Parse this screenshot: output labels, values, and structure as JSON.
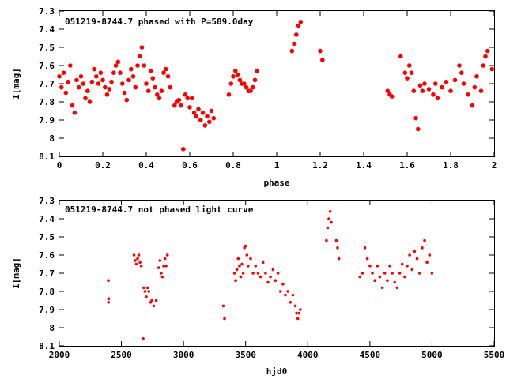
{
  "chart_data": [
    {
      "type": "scatter",
      "title": "051219-8744.7 phased with P=589.0day",
      "xlabel": "phase",
      "ylabel": "I[mag]",
      "xlim": [
        0,
        2
      ],
      "ylim": [
        7.3,
        8.1
      ],
      "y_inverted": true,
      "grid": false,
      "marker_color": "#ff0000",
      "x_ticks": [
        "0",
        "0.2",
        "0.4",
        "0.6",
        "0.8",
        "1",
        "1.2",
        "1.4",
        "1.6",
        "1.8",
        "2"
      ],
      "y_ticks": [
        "7.3",
        "7.4",
        "7.5",
        "7.6",
        "7.7",
        "7.8",
        "7.9",
        "8",
        "8.1"
      ],
      "series": [
        {
          "points": [
            [
              0.0,
              7.66
            ],
            [
              0.01,
              7.72
            ],
            [
              0.02,
              7.64
            ],
            [
              0.03,
              7.75
            ],
            [
              0.04,
              7.69
            ],
            [
              0.05,
              7.6
            ],
            [
              0.06,
              7.82
            ],
            [
              0.07,
              7.86
            ],
            [
              0.08,
              7.68
            ],
            [
              0.09,
              7.72
            ],
            [
              0.1,
              7.66
            ],
            [
              0.11,
              7.7
            ],
            [
              0.12,
              7.78
            ],
            [
              0.13,
              7.74
            ],
            [
              0.14,
              7.8
            ],
            [
              0.15,
              7.69
            ],
            [
              0.16,
              7.62
            ],
            [
              0.17,
              7.66
            ],
            [
              0.18,
              7.7
            ],
            [
              0.19,
              7.64
            ],
            [
              0.2,
              7.68
            ],
            [
              0.21,
              7.72
            ],
            [
              0.22,
              7.76
            ],
            [
              0.23,
              7.73
            ],
            [
              0.24,
              7.69
            ],
            [
              0.25,
              7.64
            ],
            [
              0.26,
              7.6
            ],
            [
              0.27,
              7.58
            ],
            [
              0.28,
              7.64
            ],
            [
              0.29,
              7.7
            ],
            [
              0.3,
              7.75
            ],
            [
              0.31,
              7.79
            ],
            [
              0.32,
              7.68
            ],
            [
              0.33,
              7.62
            ],
            [
              0.34,
              7.66
            ],
            [
              0.35,
              7.72
            ],
            [
              0.36,
              7.6
            ],
            [
              0.37,
              7.55
            ],
            [
              0.38,
              7.5
            ],
            [
              0.39,
              7.6
            ],
            [
              0.4,
              7.7
            ],
            [
              0.41,
              7.74
            ],
            [
              0.42,
              7.63
            ],
            [
              0.43,
              7.67
            ],
            [
              0.44,
              7.72
            ],
            [
              0.45,
              7.76
            ],
            [
              0.46,
              7.78
            ],
            [
              0.47,
              7.74
            ],
            [
              0.48,
              7.64
            ],
            [
              0.49,
              7.62
            ],
            [
              0.5,
              7.66
            ],
            [
              0.51,
              7.72
            ],
            [
              0.53,
              7.82
            ],
            [
              0.54,
              7.8
            ],
            [
              0.55,
              7.79
            ],
            [
              0.56,
              7.82
            ],
            [
              0.57,
              8.06
            ],
            [
              0.58,
              7.76
            ],
            [
              0.59,
              7.78
            ],
            [
              0.6,
              7.83
            ],
            [
              0.61,
              7.78
            ],
            [
              0.62,
              7.86
            ],
            [
              0.63,
              7.88
            ],
            [
              0.64,
              7.84
            ],
            [
              0.65,
              7.9
            ],
            [
              0.66,
              7.86
            ],
            [
              0.67,
              7.93
            ],
            [
              0.68,
              7.88
            ],
            [
              0.69,
              7.91
            ],
            [
              0.7,
              7.85
            ],
            [
              0.71,
              7.89
            ],
            [
              0.78,
              7.76
            ],
            [
              0.79,
              7.7
            ],
            [
              0.8,
              7.66
            ],
            [
              0.81,
              7.63
            ],
            [
              0.82,
              7.65
            ],
            [
              0.83,
              7.68
            ],
            [
              0.84,
              7.7
            ],
            [
              0.85,
              7.7
            ],
            [
              0.86,
              7.72
            ],
            [
              0.87,
              7.74
            ],
            [
              0.88,
              7.74
            ],
            [
              0.89,
              7.72
            ],
            [
              0.9,
              7.68
            ],
            [
              0.91,
              7.63
            ],
            [
              1.07,
              7.52
            ],
            [
              1.08,
              7.48
            ],
            [
              1.09,
              7.43
            ],
            [
              1.1,
              7.38
            ],
            [
              1.11,
              7.36
            ],
            [
              1.2,
              7.52
            ],
            [
              1.21,
              7.57
            ],
            [
              1.51,
              7.74
            ],
            [
              1.52,
              7.76
            ],
            [
              1.53,
              7.77
            ],
            [
              1.57,
              7.55
            ],
            [
              1.59,
              7.64
            ],
            [
              1.6,
              7.67
            ],
            [
              1.61,
              7.6
            ],
            [
              1.62,
              7.64
            ],
            [
              1.63,
              7.74
            ],
            [
              1.64,
              7.89
            ],
            [
              1.65,
              7.95
            ],
            [
              1.66,
              7.71
            ],
            [
              1.67,
              7.74
            ],
            [
              1.68,
              7.7
            ],
            [
              1.7,
              7.73
            ],
            [
              1.72,
              7.76
            ],
            [
              1.73,
              7.7
            ],
            [
              1.74,
              7.78
            ],
            [
              1.76,
              7.72
            ],
            [
              1.78,
              7.69
            ],
            [
              1.8,
              7.74
            ],
            [
              1.82,
              7.68
            ],
            [
              1.84,
              7.6
            ],
            [
              1.85,
              7.64
            ],
            [
              1.86,
              7.7
            ],
            [
              1.88,
              7.76
            ],
            [
              1.9,
              7.82
            ],
            [
              1.91,
              7.72
            ],
            [
              1.92,
              7.66
            ],
            [
              1.94,
              7.74
            ],
            [
              1.95,
              7.6
            ],
            [
              1.96,
              7.55
            ],
            [
              1.97,
              7.52
            ],
            [
              1.99,
              7.62
            ]
          ]
        }
      ]
    },
    {
      "type": "scatter",
      "title": "051219-8744.7 not phased light curve",
      "xlabel": "hjd0",
      "ylabel": "I[mag]",
      "xlim": [
        2000,
        5500
      ],
      "ylim": [
        7.3,
        8.1
      ],
      "y_inverted": true,
      "grid": false,
      "marker_color": "#ff0000",
      "x_ticks": [
        "2000",
        "2500",
        "3000",
        "3500",
        "4000",
        "4500",
        "5000",
        "5500"
      ],
      "y_ticks": [
        "7.3",
        "7.4",
        "7.5",
        "7.6",
        "7.7",
        "7.8",
        "7.9",
        "8",
        "8.1"
      ],
      "series": [
        {
          "points": [
            [
              2395,
              7.74
            ],
            [
              2396,
              7.86
            ],
            [
              2398,
              7.84
            ],
            [
              2602,
              7.6
            ],
            [
              2610,
              7.63
            ],
            [
              2620,
              7.65
            ],
            [
              2630,
              7.62
            ],
            [
              2640,
              7.6
            ],
            [
              2650,
              7.64
            ],
            [
              2660,
              7.66
            ],
            [
              2675,
              8.06
            ],
            [
              2680,
              7.78
            ],
            [
              2690,
              7.8
            ],
            [
              2700,
              7.83
            ],
            [
              2710,
              7.78
            ],
            [
              2720,
              7.8
            ],
            [
              2735,
              7.86
            ],
            [
              2745,
              7.85
            ],
            [
              2760,
              7.88
            ],
            [
              2780,
              7.85
            ],
            [
              2800,
              7.67
            ],
            [
              2810,
              7.63
            ],
            [
              2820,
              7.7
            ],
            [
              2830,
              7.72
            ],
            [
              2840,
              7.66
            ],
            [
              2850,
              7.62
            ],
            [
              2860,
              7.66
            ],
            [
              2870,
              7.6
            ],
            [
              3320,
              7.88
            ],
            [
              3330,
              7.95
            ],
            [
              3410,
              7.7
            ],
            [
              3420,
              7.74
            ],
            [
              3430,
              7.68
            ],
            [
              3440,
              7.62
            ],
            [
              3450,
              7.66
            ],
            [
              3460,
              7.72
            ],
            [
              3470,
              7.65
            ],
            [
              3480,
              7.7
            ],
            [
              3490,
              7.56
            ],
            [
              3500,
              7.55
            ],
            [
              3510,
              7.6
            ],
            [
              3520,
              7.66
            ],
            [
              3540,
              7.62
            ],
            [
              3560,
              7.7
            ],
            [
              3580,
              7.66
            ],
            [
              3600,
              7.7
            ],
            [
              3620,
              7.72
            ],
            [
              3640,
              7.64
            ],
            [
              3660,
              7.7
            ],
            [
              3680,
              7.75
            ],
            [
              3700,
              7.72
            ],
            [
              3720,
              7.68
            ],
            [
              3740,
              7.74
            ],
            [
              3760,
              7.7
            ],
            [
              3780,
              7.8
            ],
            [
              3800,
              7.76
            ],
            [
              3820,
              7.82
            ],
            [
              3840,
              7.8
            ],
            [
              3860,
              7.86
            ],
            [
              3880,
              7.82
            ],
            [
              3900,
              7.88
            ],
            [
              3910,
              7.92
            ],
            [
              3920,
              7.95
            ],
            [
              3930,
              7.92
            ],
            [
              3940,
              7.9
            ],
            [
              4150,
              7.52
            ],
            [
              4160,
              7.45
            ],
            [
              4170,
              7.4
            ],
            [
              4180,
              7.36
            ],
            [
              4190,
              7.42
            ],
            [
              4230,
              7.52
            ],
            [
              4240,
              7.56
            ],
            [
              4250,
              7.62
            ],
            [
              4420,
              7.72
            ],
            [
              4440,
              7.7
            ],
            [
              4460,
              7.56
            ],
            [
              4480,
              7.62
            ],
            [
              4500,
              7.66
            ],
            [
              4520,
              7.7
            ],
            [
              4540,
              7.74
            ],
            [
              4560,
              7.66
            ],
            [
              4580,
              7.72
            ],
            [
              4600,
              7.78
            ],
            [
              4620,
              7.7
            ],
            [
              4640,
              7.74
            ],
            [
              4660,
              7.66
            ],
            [
              4680,
              7.7
            ],
            [
              4700,
              7.75
            ],
            [
              4720,
              7.78
            ],
            [
              4740,
              7.7
            ],
            [
              4760,
              7.65
            ],
            [
              4780,
              7.72
            ],
            [
              4800,
              7.66
            ],
            [
              4820,
              7.6
            ],
            [
              4840,
              7.68
            ],
            [
              4860,
              7.58
            ],
            [
              4880,
              7.62
            ],
            [
              4900,
              7.7
            ],
            [
              4920,
              7.56
            ],
            [
              4940,
              7.52
            ],
            [
              4960,
              7.64
            ],
            [
              4980,
              7.6
            ],
            [
              5000,
              7.7
            ]
          ]
        }
      ]
    }
  ]
}
